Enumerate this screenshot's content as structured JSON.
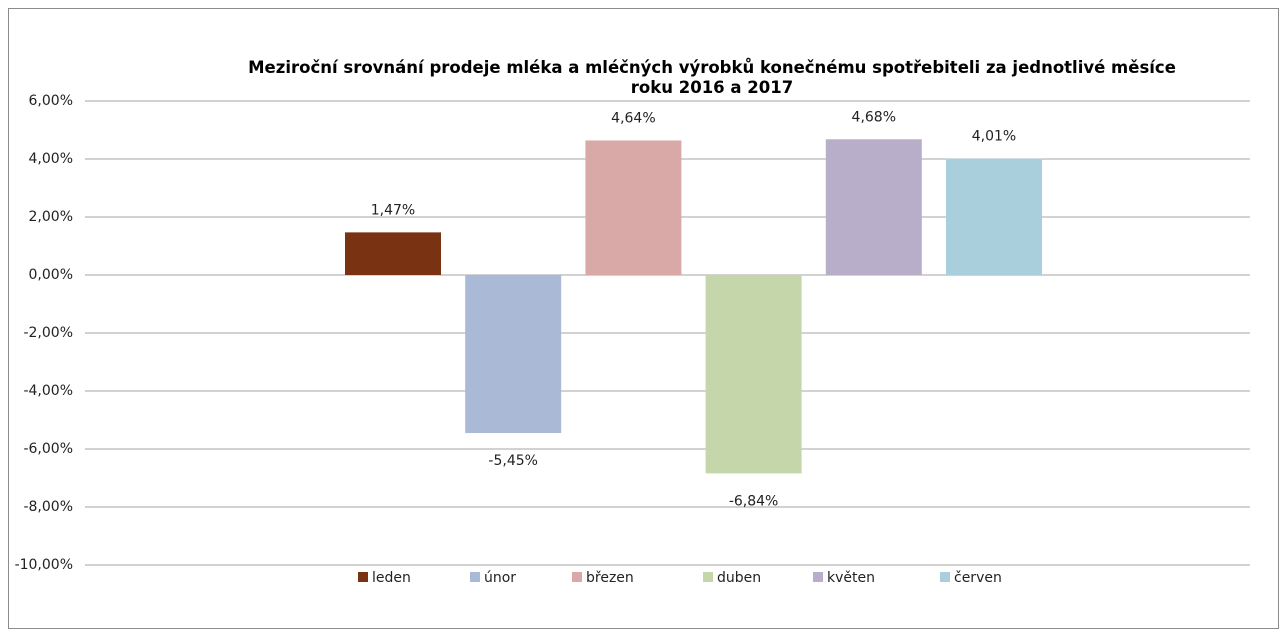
{
  "chart_data": {
    "type": "bar",
    "title": "Meziroční srovnání prodeje mléka a mléčných výrobků konečnému spotřebiteli za jednotlivé měsíce roku 2016 a 2017",
    "series": [
      {
        "name": "leden",
        "color": "#7a3312",
        "values": [
          1.47
        ],
        "value_labels": [
          "1,47%"
        ]
      },
      {
        "name": "únor",
        "color": "#aab9d6",
        "values": [
          -5.45
        ],
        "value_labels": [
          "-5,45%"
        ]
      },
      {
        "name": "březen",
        "color": "#d9a9a8",
        "values": [
          4.64
        ],
        "value_labels": [
          "4,64%"
        ]
      },
      {
        "name": "duben",
        "color": "#c6d6ab",
        "values": [
          -6.84
        ],
        "value_labels": [
          "-6,84%"
        ]
      },
      {
        "name": "květen",
        "color": "#b8aec9",
        "values": [
          4.68
        ],
        "value_labels": [
          "4,68%"
        ]
      },
      {
        "name": "červen",
        "color": "#a9cfdc",
        "values": [
          4.01
        ],
        "value_labels": [
          "4,01%"
        ]
      }
    ],
    "ylim": [
      -10,
      6
    ],
    "yticks": [
      {
        "value": -10,
        "label": "-10,00%"
      },
      {
        "value": -8,
        "label": "-8,00%"
      },
      {
        "value": -6,
        "label": "-6,00%"
      },
      {
        "value": -4,
        "label": "-4,00%"
      },
      {
        "value": -2,
        "label": "-2,00%"
      },
      {
        "value": 0,
        "label": "0,00%"
      },
      {
        "value": 2,
        "label": "2,00%"
      },
      {
        "value": 4,
        "label": "4,00%"
      },
      {
        "value": 6,
        "label": "6,00%"
      }
    ],
    "grid": true,
    "legend": "bottom"
  }
}
